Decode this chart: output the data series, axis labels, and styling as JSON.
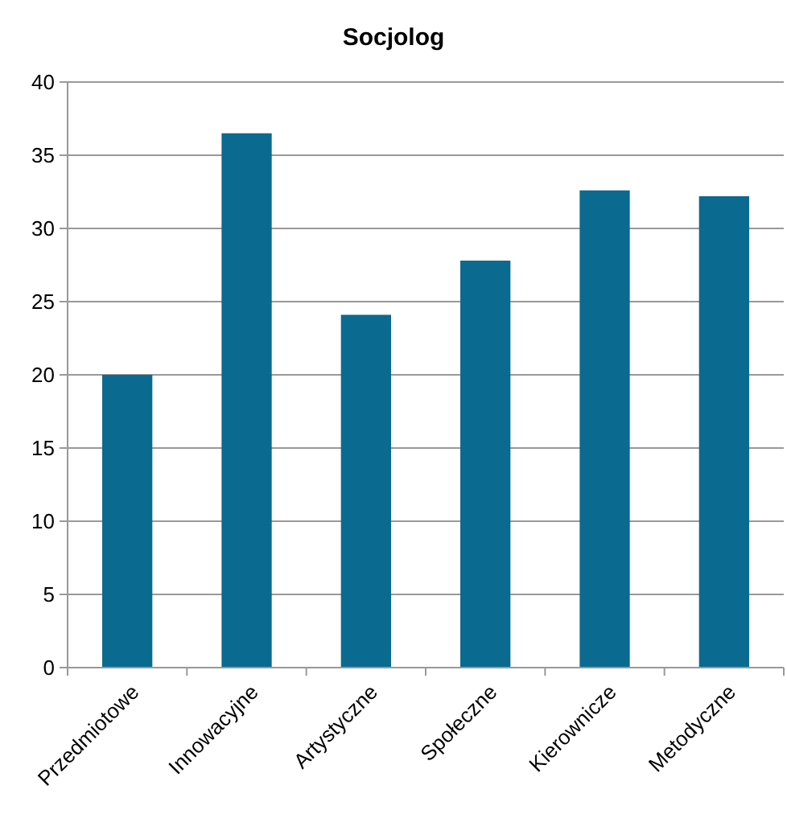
{
  "chart_data": {
    "type": "bar",
    "title": "Socjolog",
    "categories": [
      "Przedmiotowe",
      "Innowacyjne",
      "Artystyczne",
      "Społeczne",
      "Kierownicze",
      "Metodyczne"
    ],
    "values": [
      20.0,
      36.5,
      24.1,
      27.8,
      32.6,
      32.2
    ],
    "color": "#0b6a8f",
    "ylim": [
      0,
      40
    ],
    "yticks": [
      0,
      5,
      10,
      15,
      20,
      25,
      30,
      35,
      40
    ],
    "grid": "y"
  }
}
